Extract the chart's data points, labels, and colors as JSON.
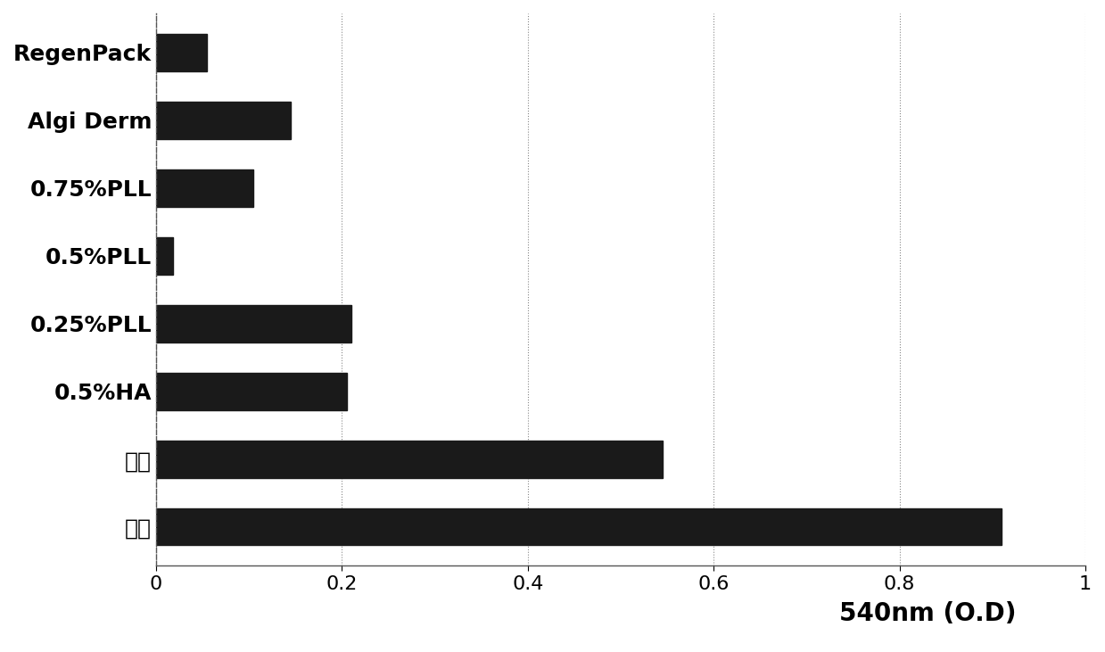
{
  "categories_reversed": [
    "血液",
    "纱布",
    "0.5%HA",
    "0.25%PLL",
    "0.5%PLL",
    "0.75%PLL",
    "Algi Derm",
    "RegenPack"
  ],
  "values_reversed": [
    0.91,
    0.545,
    0.205,
    0.21,
    0.018,
    0.105,
    0.145,
    0.055
  ],
  "bar_color": "#1a1a1a",
  "xlim": [
    0,
    1.0
  ],
  "xticks": [
    0,
    0.2,
    0.4,
    0.6,
    0.8,
    1.0
  ],
  "xtick_labels": [
    "0",
    "0.2",
    "0.4",
    "0.6",
    "0.8",
    "1"
  ],
  "xlabel": "540nm (O.D)",
  "xlabel_fontsize": 20,
  "xlabel_fontweight": "bold",
  "tick_fontsize": 16,
  "ylabel_fontsize": 18,
  "bar_height": 0.55,
  "background_color": "#ffffff",
  "grid_color": "#888888",
  "grid_linestyle": ":"
}
